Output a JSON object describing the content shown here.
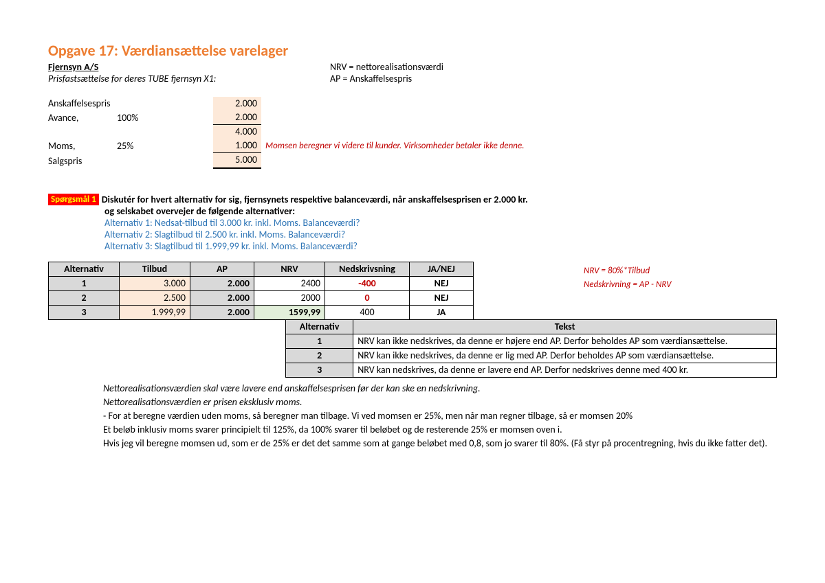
{
  "title": "Opgave 17: Værdiansættelse varelager",
  "company": "Fjernsyn A/S",
  "subtitle": "Prisfastsættelse for deres TUBE fjernsyn X1:",
  "def_nrv": "NRV = nettorealisationsværdi",
  "def_ap": "AP = Anskaffelsespris",
  "price": {
    "anskaf_label": "Anskaffelsespris",
    "anskaf_val": "2.000",
    "avance_label": "Avance,",
    "avance_pct": "100%",
    "avance_val": "2.000",
    "sum1": "4.000",
    "moms_label": "Moms,",
    "moms_pct": "25%",
    "moms_val": "1.000",
    "moms_note": "Momsen beregner vi videre til kunder. Virksomheder betaler ikke denne.",
    "salg_label": "Salgspris",
    "salg_val": "5.000"
  },
  "q1": {
    "badge": "Spørgsmål 1",
    "line1": "Diskutér for hvert alternativ for sig, fjernsynets respektive balanceværdi, når anskaffelsesprisen er 2.000 kr.",
    "line2": "og selskabet overvejer de følgende alternativer:",
    "alt1": "Alternativ 1: Nedsat-tilbud til 3.000 kr. inkl. Moms. Balanceværdi?",
    "alt2": "Alternativ 2: Slagtilbud til 2.500 kr. inkl. Moms. Balanceværdi?",
    "alt3": "Alternativ 3: Slagtilbud til 1.999,99 kr. inkl. Moms. Balanceværdi?"
  },
  "table1": {
    "headers": [
      "Alternativ",
      "Tilbud",
      "AP",
      "NRV",
      "Nedskrivsning",
      "JA/NEJ"
    ],
    "rows": [
      {
        "alt": "1",
        "tilbud": "3.000",
        "ap": "2.000",
        "nrv": "2400",
        "nrv_green": false,
        "ned": "-400",
        "ned_red": true,
        "janej": "NEJ"
      },
      {
        "alt": "2",
        "tilbud": "2.500",
        "ap": "2.000",
        "nrv": "2000",
        "nrv_green": false,
        "ned": "0",
        "ned_red": true,
        "janej": "NEJ"
      },
      {
        "alt": "3",
        "tilbud": "1.999,99",
        "ap": "2.000",
        "nrv": "1599,99",
        "nrv_green": true,
        "ned": "400",
        "ned_red": false,
        "janej": "JA"
      }
    ]
  },
  "formula1": "NRV = 80%*Tilbud",
  "formula2": "Nedskrivning = AP - NRV",
  "table2": {
    "headers": [
      "Alternativ",
      "Tekst"
    ],
    "rows": [
      {
        "alt": "1",
        "text": "NRV kan ikke nedskrives, da denne er højere end AP. Derfor beholdes AP som værdiansættelse."
      },
      {
        "alt": "2",
        "text": "NRV kan ikke nedskrives, da denne er lig med AP. Derfor beholdes AP som værdiansættelse."
      },
      {
        "alt": "3",
        "text": "NRV kan nedskrives, da denne er lavere end AP. Derfor nedskrives denne med 400 kr."
      }
    ]
  },
  "notes": {
    "n1": "Nettorealisationsværdien skal være lavere end anskaffelsesprisen før der kan ske en nedskrivning.",
    "n2": "Nettorealisationsværdien er prisen eksklusiv moms.",
    "n3": "- For at beregne værdien uden moms, så beregner man tilbage. Vi ved momsen er 25%, men når man regner tilbage, så er momsen 20%",
    "n4": "Et beløb inklusiv moms svarer principielt til 125%, da 100% svarer til beløbet og de resterende 25% er momsen oven i.",
    "n5": "Hvis jeg vil beregne momsen ud, som er de 25% er det det samme som at gange beløbet med 0,8, som jo svarer til 80%. (Få styr på procentregning, hvis du ikke fatter det)."
  }
}
